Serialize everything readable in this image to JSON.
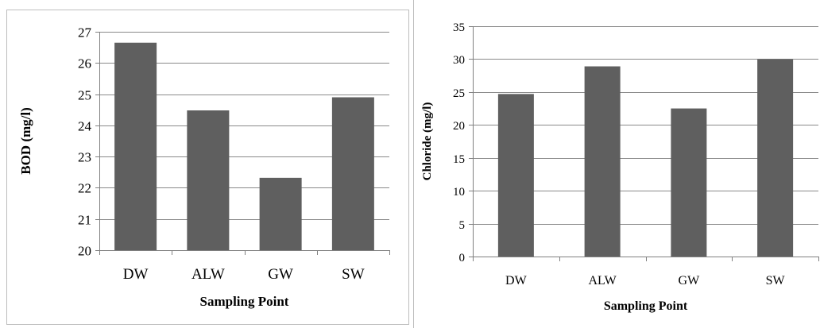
{
  "colors": {
    "bar": "#5f5f5f",
    "grid": "#8a8a8a",
    "border": "#bdbdbd"
  },
  "chart_data": [
    {
      "type": "bar",
      "categories": [
        "DW",
        "ALW",
        "GW",
        "SW"
      ],
      "values": [
        26.65,
        24.48,
        22.32,
        24.9
      ],
      "title": "",
      "xlabel": "Sampling Point",
      "ylabel": "BOD (mg/l)",
      "ylim": [
        20,
        27
      ],
      "yticks": [
        "20",
        "21",
        "22",
        "23",
        "24",
        "25",
        "26",
        "27"
      ],
      "grid": true,
      "legend": "none"
    },
    {
      "type": "bar",
      "categories": [
        "DW",
        "ALW",
        "GW",
        "SW"
      ],
      "values": [
        24.7,
        28.9,
        22.5,
        30.0
      ],
      "title": "",
      "xlabel": "Sampling Point",
      "ylabel": "Chloride (mg/l)",
      "ylim": [
        0,
        35
      ],
      "yticks": [
        "0",
        "5",
        "10",
        "15",
        "20",
        "25",
        "30",
        "35"
      ],
      "grid": true,
      "legend": "none"
    }
  ]
}
